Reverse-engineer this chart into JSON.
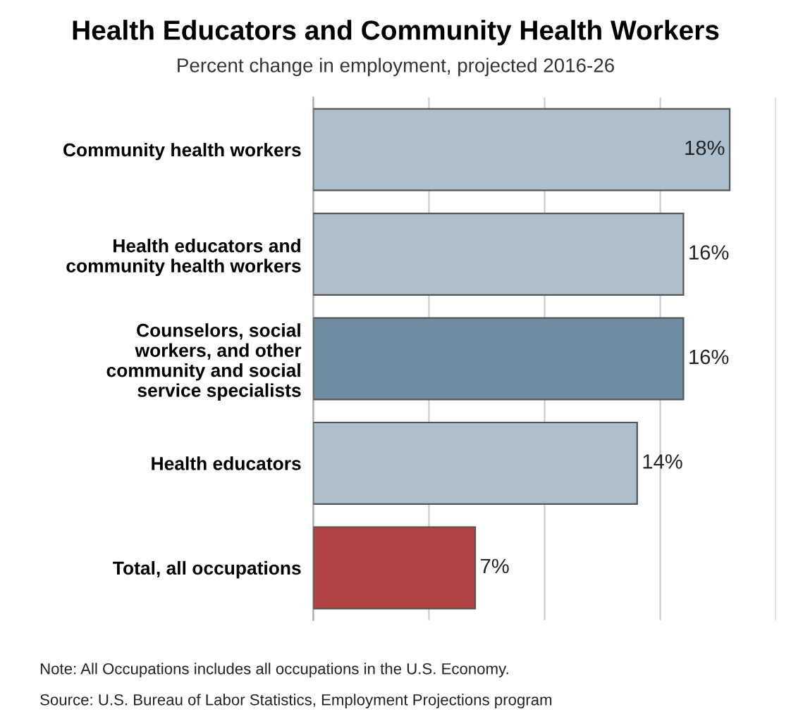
{
  "chart_data": {
    "type": "bar",
    "orientation": "horizontal",
    "title": "Health Educators and Community Health Workers",
    "subtitle": "Percent change in employment, projected 2016-26",
    "categories": [
      "Community health workers",
      "Health educators and\ncommunity health workers",
      "Counselors, social\nworkers, and other\ncommunity and social\nservice specialists",
      "Health educators",
      "Total, all occupations"
    ],
    "values": [
      18,
      16,
      16,
      14,
      7
    ],
    "colors": [
      "#adbfcc",
      "#adbfcc",
      "#6f8ca3",
      "#adbfcc",
      "#b34242"
    ],
    "value_labels": [
      "18%",
      "16%",
      "16%",
      "14%",
      "7%"
    ],
    "xlim": [
      0,
      20
    ],
    "xticks": [
      {
        "value": 0,
        "label": null
      },
      {
        "value": 5,
        "label": null
      },
      {
        "value": 10,
        "label": null
      },
      {
        "value": 15,
        "label": null
      },
      {
        "value": 20,
        "label": null
      }
    ],
    "grid": "x",
    "tick_labels": "y",
    "annotations": [
      "Note: All Occupations includes all occupations in the U.S. Economy.",
      "Source: U.S. Bureau of Labor Statistics, Employment Projections program"
    ]
  }
}
